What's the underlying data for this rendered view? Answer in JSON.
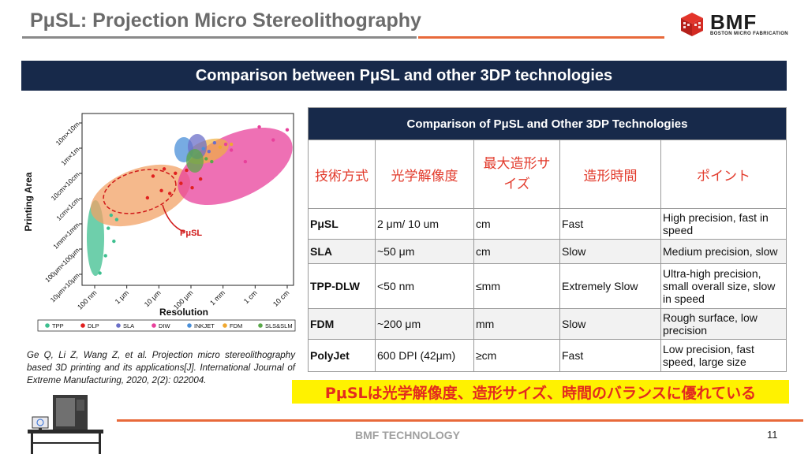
{
  "slide": {
    "title": "PμSL: Projection Micro Stereolithography",
    "banner": "Comparison between PμSL and other 3DP technologies",
    "citation": "Ge Q, Li Z, Wang Z, et al. Projection micro stereolithography based 3D printing and its applications[J]. International Journal of Extreme Manufacturing, 2020, 2(2): 022004.",
    "note": "PμSLは光学解像度、造形サイズ、時間のバランスに優れている",
    "footer": "BMF TECHNOLOGY",
    "page_number": "11"
  },
  "logo": {
    "name": "BMF",
    "tagline": "BOSTON MICRO FABRICATION"
  },
  "table": {
    "caption": "Comparison of PμSL and Other 3DP Technologies",
    "headers": [
      "技術方式",
      "光学解像度",
      "最大造形サイズ",
      "造形時間",
      "ポイント"
    ],
    "rows": [
      [
        "PμSL",
        "2 μm/ 10 um",
        "cm",
        "Fast",
        "High precision, fast in speed"
      ],
      [
        "SLA",
        "~50 μm",
        "cm",
        "Slow",
        "Medium precision, slow"
      ],
      [
        "TPP-DLW",
        "<50 nm",
        "≤mm",
        "Extremely Slow",
        "Ultra-high precision, small overall size, slow in speed"
      ],
      [
        "FDM",
        "~200 μm",
        "mm",
        "Slow",
        "Rough surface, low precision"
      ],
      [
        "PolyJet",
        "600 DPI (42μm)",
        "≥cm",
        "Fast",
        "Low precision, fast speed, large size"
      ]
    ]
  },
  "colors": {
    "navy": "#17294a",
    "accent_orange": "#e8693a",
    "header_red": "#e23a2b",
    "note_yellow": "#fff200"
  },
  "chart_data": {
    "type": "scatter",
    "xlabel": "Resolution",
    "ylabel": "Printing Area",
    "x_ticks": [
      "100 nm",
      "1 μm",
      "10 μm",
      "100 μm",
      "1 mm",
      "1 cm",
      "10 cm"
    ],
    "y_ticks": [
      "10μm×10μm",
      "100μm×100μm",
      "1mm×1mm",
      "1cm×1cm",
      "10cm×10cm",
      "1m×1m",
      "10m×10m"
    ],
    "log_scale": true,
    "annotation": "PμSL",
    "legend_position": "bottom",
    "series": [
      {
        "name": "TPP",
        "color": "#3dbf8f",
        "points": [
          [
            0.3,
            0.3
          ],
          [
            0.5,
            1.5
          ],
          [
            0.8,
            2.5
          ],
          [
            0.6,
            3.4
          ],
          [
            0.9,
            4.0
          ],
          [
            0.7,
            4.3
          ]
        ]
      },
      {
        "name": "DLP",
        "color": "#e0201f",
        "points": [
          [
            2.0,
            5.5
          ],
          [
            2.5,
            6.0
          ],
          [
            2.8,
            5.8
          ],
          [
            3.2,
            6.5
          ],
          [
            3.6,
            6.2
          ],
          [
            3.9,
            6.8
          ],
          [
            3.0,
            7.2
          ],
          [
            2.2,
            7.0
          ],
          [
            2.6,
            7.5
          ],
          [
            3.4,
            7.4
          ]
        ]
      },
      {
        "name": "SLA",
        "color": "#6b6fc8",
        "points": [
          [
            4.2,
            8.7
          ],
          [
            4.4,
            9.3
          ]
        ]
      },
      {
        "name": "DIW",
        "color": "#e8409b",
        "points": [
          [
            5.5,
            8.0
          ],
          [
            5.0,
            8.8
          ],
          [
            6.5,
            9.5
          ],
          [
            7.0,
            10.2
          ],
          [
            6.0,
            10.4
          ],
          [
            4.8,
            9.2
          ]
        ]
      },
      {
        "name": "INKJET",
        "color": "#4a8fd8",
        "points": [
          [
            4.0,
            8.9
          ]
        ]
      },
      {
        "name": "FDM",
        "color": "#f0a830",
        "points": [
          [
            4.6,
            9.0
          ],
          [
            5.0,
            9.2
          ]
        ]
      },
      {
        "name": "SLS&SLM",
        "color": "#5aa84a",
        "points": [
          [
            4.1,
            8.2
          ],
          [
            4.3,
            8.0
          ]
        ]
      }
    ]
  }
}
